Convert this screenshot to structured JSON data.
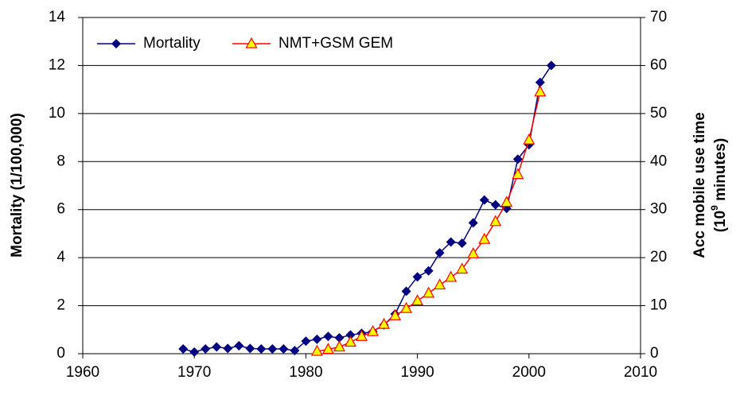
{
  "chart_data": {
    "type": "line",
    "ylabel": "Mortality (1/100,000)",
    "y2label": {
      "line1": "Acc mobile use time",
      "line2": [
        "(10",
        "9",
        " minutes)"
      ]
    },
    "xlim": [
      1960,
      2010
    ],
    "xticks": [
      1960,
      1970,
      1980,
      1990,
      2000,
      2010
    ],
    "ylim": [
      0,
      14
    ],
    "yticks": [
      0,
      2,
      4,
      6,
      8,
      10,
      12,
      14
    ],
    "y2lim": [
      0,
      70
    ],
    "y2ticks": [
      0,
      10,
      20,
      30,
      40,
      50,
      60,
      70
    ],
    "grid": true,
    "legend": "upper left",
    "series": [
      {
        "name": "Mortality",
        "color": "#000080",
        "marker": "diamond",
        "x": [
          1969,
          1970,
          1971,
          1972,
          1973,
          1974,
          1975,
          1976,
          1977,
          1978,
          1979,
          1980,
          1981,
          1982,
          1983,
          1984,
          1985,
          1986,
          1987,
          1988,
          1989,
          1990,
          1991,
          1992,
          1993,
          1994,
          1995,
          1996,
          1997,
          1998,
          1999,
          2000,
          2001,
          2002
        ],
        "values": [
          0.2,
          0.07,
          0.2,
          0.28,
          0.22,
          0.33,
          0.22,
          0.2,
          0.2,
          0.2,
          0.13,
          0.52,
          0.6,
          0.72,
          0.66,
          0.78,
          0.85,
          0.92,
          1.2,
          1.65,
          2.6,
          3.2,
          3.45,
          4.2,
          4.65,
          4.6,
          5.45,
          6.4,
          6.2,
          6.05,
          8.1,
          8.7,
          11.3,
          12.0
        ]
      },
      {
        "name": "NMT+GSM GEM",
        "color": "#ff0000",
        "marker": "triangle",
        "marker_fill": "#ffff00",
        "axis": "y2",
        "x": [
          1981,
          1982,
          1983,
          1984,
          1985,
          1986,
          1987,
          1988,
          1989,
          1990,
          1991,
          1992,
          1993,
          1994,
          1995,
          1996,
          1997,
          1998,
          1999,
          2000,
          2001
        ],
        "values": [
          0.5,
          0.9,
          1.4,
          2.4,
          3.6,
          4.6,
          6.1,
          7.9,
          9.4,
          11,
          12.6,
          14.3,
          15.9,
          17.6,
          20.8,
          23.8,
          27.5,
          31.5,
          37.3,
          44.5,
          54.5
        ]
      }
    ]
  }
}
